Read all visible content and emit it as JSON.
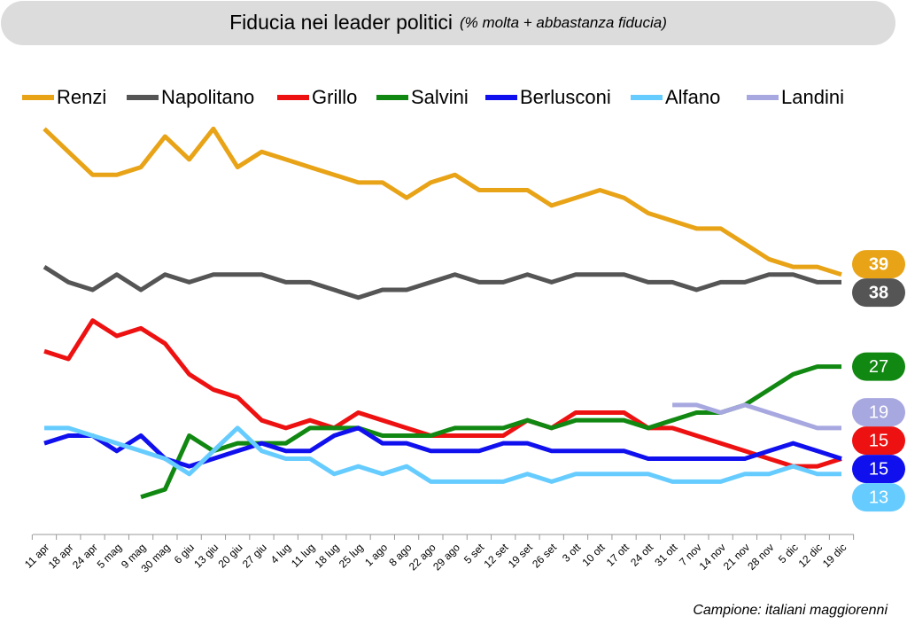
{
  "chart_data": {
    "type": "line",
    "title": "Fiducia nei leader politici",
    "subtitle": "(% molta + abbastanza fiducia)",
    "note": "Campione: italiani maggiorenni",
    "categories": [
      "11 apr",
      "18 apr",
      "24 apr",
      "5 mag",
      "9 mag",
      "30 mag",
      "6 giu",
      "13 giu",
      "20 giu",
      "27 giu",
      "4 lug",
      "11 lug",
      "18 lug",
      "25 lug",
      "1 ago",
      "8 ago",
      "22 ago",
      "29 ago",
      "5 set",
      "12 set",
      "19 set",
      "26 set",
      "3 ott",
      "10 ott",
      "17 ott",
      "24 ott",
      "31 ott",
      "7 nov",
      "14 nov",
      "21 nov",
      "28 nov",
      "5 dic",
      "12 dic",
      "19 dic"
    ],
    "ylim": [
      5,
      60
    ],
    "series": [
      {
        "name": "Renzi",
        "color": "#e8a317",
        "values": [
          58,
          55,
          52,
          52,
          53,
          57,
          54,
          58,
          53,
          55,
          54,
          53,
          52,
          51,
          51,
          49,
          51,
          52,
          50,
          50,
          50,
          48,
          49,
          50,
          49,
          47,
          46,
          45,
          45,
          43,
          41,
          40,
          40,
          39
        ]
      },
      {
        "name": "Napolitano",
        "color": "#555555",
        "values": [
          40,
          38,
          37,
          39,
          37,
          39,
          38,
          39,
          39,
          39,
          38,
          38,
          37,
          36,
          37,
          37,
          38,
          39,
          38,
          38,
          39,
          38,
          39,
          39,
          39,
          38,
          38,
          37,
          38,
          38,
          39,
          39,
          38,
          38
        ]
      },
      {
        "name": "Grillo",
        "color": "#ee1111",
        "values": [
          29,
          28,
          33,
          31,
          32,
          30,
          26,
          24,
          23,
          20,
          19,
          20,
          19,
          21,
          20,
          19,
          18,
          18,
          18,
          18,
          20,
          19,
          21,
          21,
          21,
          19,
          19,
          18,
          17,
          16,
          15,
          14,
          14,
          15
        ]
      },
      {
        "name": "Salvini",
        "color": "#118811",
        "values": [
          null,
          null,
          null,
          null,
          10,
          11,
          18,
          16,
          17,
          17,
          17,
          19,
          19,
          19,
          18,
          18,
          18,
          19,
          19,
          19,
          20,
          19,
          20,
          20,
          20,
          19,
          20,
          21,
          21,
          22,
          24,
          26,
          27,
          27
        ]
      },
      {
        "name": "Berlusconi",
        "color": "#1010ee",
        "values": [
          17,
          18,
          18,
          16,
          18,
          15,
          14,
          15,
          16,
          17,
          16,
          16,
          18,
          19,
          17,
          17,
          16,
          16,
          16,
          17,
          17,
          16,
          16,
          16,
          16,
          15,
          15,
          15,
          15,
          15,
          16,
          17,
          16,
          15
        ]
      },
      {
        "name": "Alfano",
        "color": "#66ccff",
        "values": [
          19,
          19,
          18,
          17,
          16,
          15,
          13,
          16,
          19,
          16,
          15,
          15,
          13,
          14,
          13,
          14,
          12,
          12,
          12,
          12,
          13,
          12,
          13,
          13,
          13,
          13,
          12,
          12,
          12,
          13,
          13,
          14,
          13,
          13
        ]
      },
      {
        "name": "Landini",
        "color": "#a8a8e0",
        "values": [
          null,
          null,
          null,
          null,
          null,
          null,
          null,
          null,
          null,
          null,
          null,
          null,
          null,
          null,
          null,
          null,
          null,
          null,
          null,
          null,
          null,
          null,
          null,
          null,
          null,
          null,
          22,
          22,
          21,
          22,
          21,
          20,
          19,
          19
        ]
      }
    ]
  }
}
